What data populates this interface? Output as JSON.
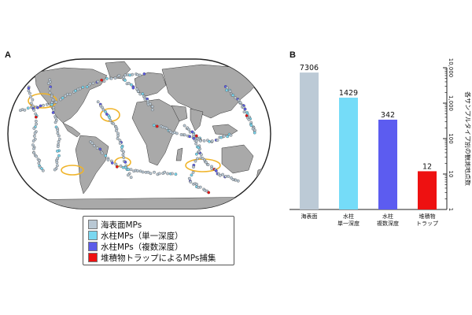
{
  "panels": {
    "a": "A",
    "b": "B"
  },
  "legend": {
    "items": [
      {
        "label": "海表面MPs",
        "color": "#b9c8d4"
      },
      {
        "label": "水柱MPs（単一深度）",
        "color": "#7ad7f0"
      },
      {
        "label": "水柱MPs（複数深度）",
        "color": "#5b5be8"
      },
      {
        "label": "堆積物トラップによるMPs捕集",
        "color": "#ee1111"
      }
    ]
  },
  "colors": {
    "land": "#a9a9a9",
    "ocean": "#ffffff",
    "gyre": "#f0b429"
  },
  "chart_data": {
    "type": "bar",
    "categories": [
      "海表面",
      "水柱\n単一深度",
      "水柱\n複数深度",
      "堆積物\nトラップ"
    ],
    "values": [
      7306,
      1429,
      342,
      12
    ],
    "value_labels": [
      "7306",
      "1429",
      "342",
      "12"
    ],
    "colors": [
      "#bccad6",
      "#75dcf8",
      "#5c5cf0",
      "#ee1111"
    ],
    "ylabel": "各サンプルタイプ別の観測地点数",
    "yscale": "log",
    "ylim": [
      1,
      10000
    ],
    "yticks": [
      "1",
      "10",
      "100",
      "1,000",
      "10,000"
    ],
    "grid": false
  }
}
